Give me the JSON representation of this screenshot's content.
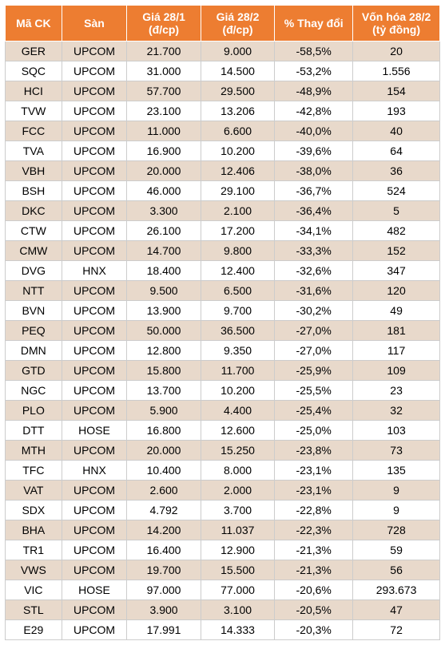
{
  "table": {
    "header_bg": "#ed7d31",
    "header_fg": "#ffffff",
    "row_even_bg": "#e8d9cb",
    "row_odd_bg": "#ffffff",
    "border_color": "#cccccc",
    "font_size": 14,
    "columns": [
      {
        "label": "Mã CK",
        "width": "13%"
      },
      {
        "label": "Sàn",
        "width": "15%"
      },
      {
        "label": "Giá 28/1 (đ/cp)",
        "width": "17%"
      },
      {
        "label": "Giá 28/2 (đ/cp)",
        "width": "17%"
      },
      {
        "label": "% Thay đổi",
        "width": "18%"
      },
      {
        "label": "Vốn hóa 28/2 (tỷ đồng)",
        "width": "20%"
      }
    ],
    "rows": [
      [
        "GER",
        "UPCOM",
        "21.700",
        "9.000",
        "-58,5%",
        "20"
      ],
      [
        "SQC",
        "UPCOM",
        "31.000",
        "14.500",
        "-53,2%",
        "1.556"
      ],
      [
        "HCI",
        "UPCOM",
        "57.700",
        "29.500",
        "-48,9%",
        "154"
      ],
      [
        "TVW",
        "UPCOM",
        "23.100",
        "13.206",
        "-42,8%",
        "193"
      ],
      [
        "FCC",
        "UPCOM",
        "11.000",
        "6.600",
        "-40,0%",
        "40"
      ],
      [
        "TVA",
        "UPCOM",
        "16.900",
        "10.200",
        "-39,6%",
        "64"
      ],
      [
        "VBH",
        "UPCOM",
        "20.000",
        "12.406",
        "-38,0%",
        "36"
      ],
      [
        "BSH",
        "UPCOM",
        "46.000",
        "29.100",
        "-36,7%",
        "524"
      ],
      [
        "DKC",
        "UPCOM",
        "3.300",
        "2.100",
        "-36,4%",
        "5"
      ],
      [
        "CTW",
        "UPCOM",
        "26.100",
        "17.200",
        "-34,1%",
        "482"
      ],
      [
        "CMW",
        "UPCOM",
        "14.700",
        "9.800",
        "-33,3%",
        "152"
      ],
      [
        "DVG",
        "HNX",
        "18.400",
        "12.400",
        "-32,6%",
        "347"
      ],
      [
        "NTT",
        "UPCOM",
        "9.500",
        "6.500",
        "-31,6%",
        "120"
      ],
      [
        "BVN",
        "UPCOM",
        "13.900",
        "9.700",
        "-30,2%",
        "49"
      ],
      [
        "PEQ",
        "UPCOM",
        "50.000",
        "36.500",
        "-27,0%",
        "181"
      ],
      [
        "DMN",
        "UPCOM",
        "12.800",
        "9.350",
        "-27,0%",
        "117"
      ],
      [
        "GTD",
        "UPCOM",
        "15.800",
        "11.700",
        "-25,9%",
        "109"
      ],
      [
        "NGC",
        "UPCOM",
        "13.700",
        "10.200",
        "-25,5%",
        "23"
      ],
      [
        "PLO",
        "UPCOM",
        "5.900",
        "4.400",
        "-25,4%",
        "32"
      ],
      [
        "DTT",
        "HOSE",
        "16.800",
        "12.600",
        "-25,0%",
        "103"
      ],
      [
        "MTH",
        "UPCOM",
        "20.000",
        "15.250",
        "-23,8%",
        "73"
      ],
      [
        "TFC",
        "HNX",
        "10.400",
        "8.000",
        "-23,1%",
        "135"
      ],
      [
        "VAT",
        "UPCOM",
        "2.600",
        "2.000",
        "-23,1%",
        "9"
      ],
      [
        "SDX",
        "UPCOM",
        "4.792",
        "3.700",
        "-22,8%",
        "9"
      ],
      [
        "BHA",
        "UPCOM",
        "14.200",
        "11.037",
        "-22,3%",
        "728"
      ],
      [
        "TR1",
        "UPCOM",
        "16.400",
        "12.900",
        "-21,3%",
        "59"
      ],
      [
        "VWS",
        "UPCOM",
        "19.700",
        "15.500",
        "-21,3%",
        "56"
      ],
      [
        "VIC",
        "HOSE",
        "97.000",
        "77.000",
        "-20,6%",
        "293.673"
      ],
      [
        "STL",
        "UPCOM",
        "3.900",
        "3.100",
        "-20,5%",
        "47"
      ],
      [
        "E29",
        "UPCOM",
        "17.991",
        "14.333",
        "-20,3%",
        "72"
      ]
    ]
  }
}
